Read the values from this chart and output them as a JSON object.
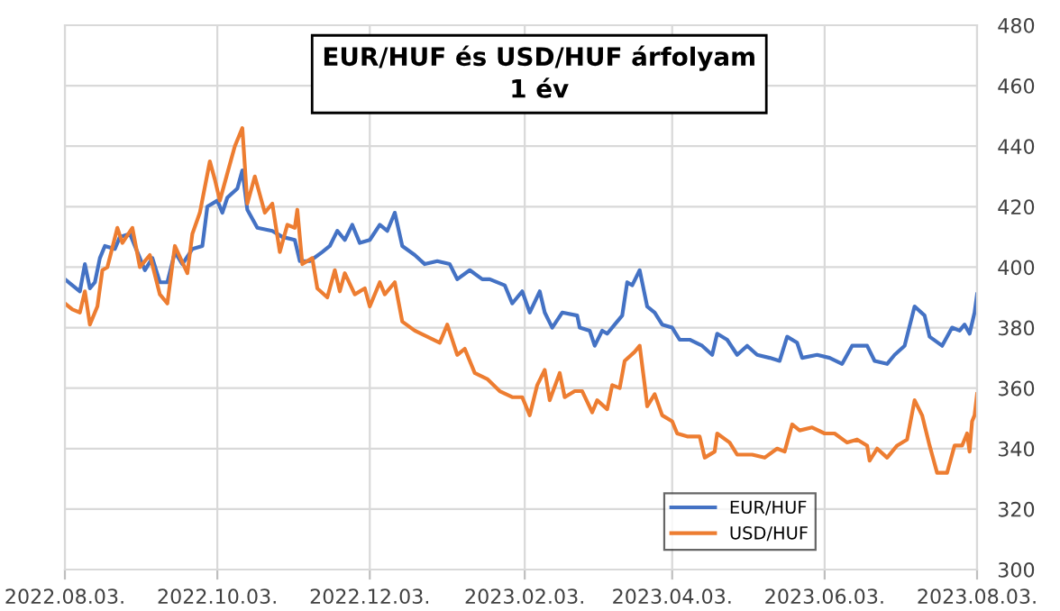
{
  "chart_data": {
    "type": "line",
    "title": "EUR/HUF és USD/HUF árfolyam\n1 év",
    "xlim": [
      "2022-08-03",
      "2023-08-03"
    ],
    "xticks": [
      {
        "value": "2022-08-03",
        "label": "2022.08.03."
      },
      {
        "value": "2022-10-03",
        "label": "2022.10.03."
      },
      {
        "value": "2022-12-03",
        "label": "2022.12.03."
      },
      {
        "value": "2023-02-03",
        "label": "2023.02.03."
      },
      {
        "value": "2023-04-03",
        "label": "2023.04.03."
      },
      {
        "value": "2023-06-03",
        "label": "2023.06.03."
      },
      {
        "value": "2023-08-03",
        "label": "2023.08.03."
      }
    ],
    "ylim": [
      300,
      480
    ],
    "yticks": [
      300,
      320,
      340,
      360,
      380,
      400,
      420,
      440,
      460,
      480
    ],
    "grid": true,
    "legend": "bottom",
    "marker": "none",
    "line_style": "solid",
    "series": [
      {
        "name": "EUR/HUF",
        "color": "#4472c4",
        "x": [
          "2022-08-03",
          "2022-08-06",
          "2022-08-09",
          "2022-08-11",
          "2022-08-13",
          "2022-08-15",
          "2022-08-17",
          "2022-08-19",
          "2022-08-23",
          "2022-08-25",
          "2022-08-29",
          "2022-09-01",
          "2022-09-04",
          "2022-09-07",
          "2022-09-10",
          "2022-09-13",
          "2022-09-16",
          "2022-09-19",
          "2022-09-23",
          "2022-09-27",
          "2022-09-29",
          "2022-10-03",
          "2022-10-05",
          "2022-10-07",
          "2022-10-11",
          "2022-10-13",
          "2022-10-15",
          "2022-10-19",
          "2022-10-25",
          "2022-10-29",
          "2022-11-03",
          "2022-11-05",
          "2022-11-09",
          "2022-11-14",
          "2022-11-17",
          "2022-11-20",
          "2022-11-23",
          "2022-11-26",
          "2022-11-29",
          "2022-12-03",
          "2022-12-07",
          "2022-12-10",
          "2022-12-13",
          "2022-12-16",
          "2022-12-21",
          "2022-12-25",
          "2022-12-30",
          "2023-01-04",
          "2023-01-07",
          "2023-01-12",
          "2023-01-17",
          "2023-01-20",
          "2023-01-26",
          "2023-01-29",
          "2023-02-02",
          "2023-02-05",
          "2023-02-09",
          "2023-02-11",
          "2023-02-14",
          "2023-02-18",
          "2023-02-24",
          "2023-02-25",
          "2023-03-01",
          "2023-03-03",
          "2023-03-06",
          "2023-03-08",
          "2023-03-11",
          "2023-03-14",
          "2023-03-16",
          "2023-03-18",
          "2023-03-21",
          "2023-03-24",
          "2023-03-27",
          "2023-03-30",
          "2023-04-03",
          "2023-04-06",
          "2023-04-10",
          "2023-04-15",
          "2023-04-19",
          "2023-04-21",
          "2023-04-25",
          "2023-04-29",
          "2023-05-03",
          "2023-05-07",
          "2023-05-12",
          "2023-05-16",
          "2023-05-19",
          "2023-05-23",
          "2023-05-25",
          "2023-05-31",
          "2023-06-05",
          "2023-06-10",
          "2023-06-14",
          "2023-06-20",
          "2023-06-23",
          "2023-06-28",
          "2023-07-01",
          "2023-07-05",
          "2023-07-09",
          "2023-07-13",
          "2023-07-15",
          "2023-07-20",
          "2023-07-24",
          "2023-07-27",
          "2023-07-29",
          "2023-07-31",
          "2023-08-02",
          "2023-08-03"
        ],
        "values": [
          396,
          394,
          392,
          401,
          393,
          395,
          403,
          407,
          406,
          410,
          411,
          405,
          399,
          403,
          395,
          395,
          405,
          401,
          406,
          407,
          420,
          422,
          418,
          423,
          426,
          432,
          419,
          413,
          412,
          410,
          409,
          402,
          402,
          405,
          407,
          412,
          409,
          414,
          408,
          409,
          414,
          412,
          418,
          407,
          404,
          401,
          402,
          401,
          396,
          399,
          396,
          396,
          394,
          388,
          392,
          385,
          392,
          385,
          380,
          385,
          384,
          380,
          379,
          374,
          379,
          378,
          381,
          384,
          395,
          394,
          399,
          387,
          385,
          381,
          380,
          376,
          376,
          374,
          371,
          378,
          376,
          371,
          374,
          371,
          370,
          369,
          377,
          375,
          370,
          371,
          370,
          368,
          374,
          374,
          369,
          368,
          371,
          374,
          387,
          384,
          377,
          374,
          380,
          379,
          381,
          378,
          385,
          391
        ]
      },
      {
        "name": "USD/HUF",
        "color": "#ed7d31",
        "x": [
          "2022-08-03",
          "2022-08-06",
          "2022-08-09",
          "2022-08-11",
          "2022-08-13",
          "2022-08-16",
          "2022-08-18",
          "2022-08-20",
          "2022-08-24",
          "2022-08-26",
          "2022-08-30",
          "2022-09-02",
          "2022-09-06",
          "2022-09-10",
          "2022-09-13",
          "2022-09-16",
          "2022-09-21",
          "2022-09-23",
          "2022-09-26",
          "2022-09-30",
          "2022-10-02",
          "2022-10-04",
          "2022-10-07",
          "2022-10-10",
          "2022-10-13",
          "2022-10-15",
          "2022-10-18",
          "2022-10-22",
          "2022-10-25",
          "2022-10-28",
          "2022-10-31",
          "2022-11-03",
          "2022-11-04",
          "2022-11-06",
          "2022-11-10",
          "2022-11-12",
          "2022-11-16",
          "2022-11-19",
          "2022-11-21",
          "2022-11-23",
          "2022-11-27",
          "2022-12-01",
          "2022-12-03",
          "2022-12-07",
          "2022-12-09",
          "2022-12-13",
          "2022-12-16",
          "2022-12-21",
          "2022-12-26",
          "2022-12-31",
          "2023-01-03",
          "2023-01-07",
          "2023-01-10",
          "2023-01-14",
          "2023-01-19",
          "2023-01-24",
          "2023-01-29",
          "2023-02-02",
          "2023-02-05",
          "2023-02-08",
          "2023-02-11",
          "2023-02-13",
          "2023-02-17",
          "2023-02-19",
          "2023-02-23",
          "2023-02-26",
          "2023-03-02",
          "2023-03-04",
          "2023-03-08",
          "2023-03-10",
          "2023-03-13",
          "2023-03-15",
          "2023-03-19",
          "2023-03-21",
          "2023-03-23",
          "2023-03-24",
          "2023-03-27",
          "2023-03-30",
          "2023-04-03",
          "2023-04-05",
          "2023-04-09",
          "2023-04-14",
          "2023-04-16",
          "2023-04-20",
          "2023-04-21",
          "2023-04-26",
          "2023-04-29",
          "2023-05-05",
          "2023-05-10",
          "2023-05-15",
          "2023-05-18",
          "2023-05-21",
          "2023-05-24",
          "2023-05-29",
          "2023-06-03",
          "2023-06-07",
          "2023-06-12",
          "2023-06-16",
          "2023-06-20",
          "2023-06-21",
          "2023-06-24",
          "2023-06-28",
          "2023-07-02",
          "2023-07-06",
          "2023-07-09",
          "2023-07-12",
          "2023-07-15",
          "2023-07-18",
          "2023-07-22",
          "2023-07-25",
          "2023-07-28",
          "2023-07-30",
          "2023-07-31",
          "2023-08-01",
          "2023-08-02",
          "2023-08-03"
        ],
        "values": [
          388,
          386,
          385,
          392,
          381,
          387,
          399,
          400,
          413,
          408,
          413,
          400,
          404,
          391,
          388,
          407,
          398,
          411,
          418,
          435,
          429,
          422,
          431,
          440,
          446,
          421,
          430,
          418,
          421,
          405,
          414,
          413,
          419,
          401,
          403,
          393,
          390,
          399,
          392,
          398,
          391,
          393,
          387,
          395,
          391,
          395,
          382,
          379,
          377,
          375,
          381,
          371,
          373,
          365,
          363,
          359,
          357,
          357,
          351,
          361,
          366,
          356,
          365,
          357,
          359,
          359,
          352,
          356,
          353,
          361,
          360,
          369,
          372,
          374,
          361,
          354,
          358,
          351,
          349,
          345,
          344,
          344,
          337,
          339,
          345,
          342,
          338,
          338,
          337,
          340,
          339,
          348,
          346,
          347,
          345,
          345,
          342,
          343,
          341,
          336,
          340,
          337,
          341,
          343,
          356,
          351,
          341,
          332,
          332,
          341,
          341,
          345,
          339,
          349,
          351,
          358
        ]
      }
    ]
  }
}
